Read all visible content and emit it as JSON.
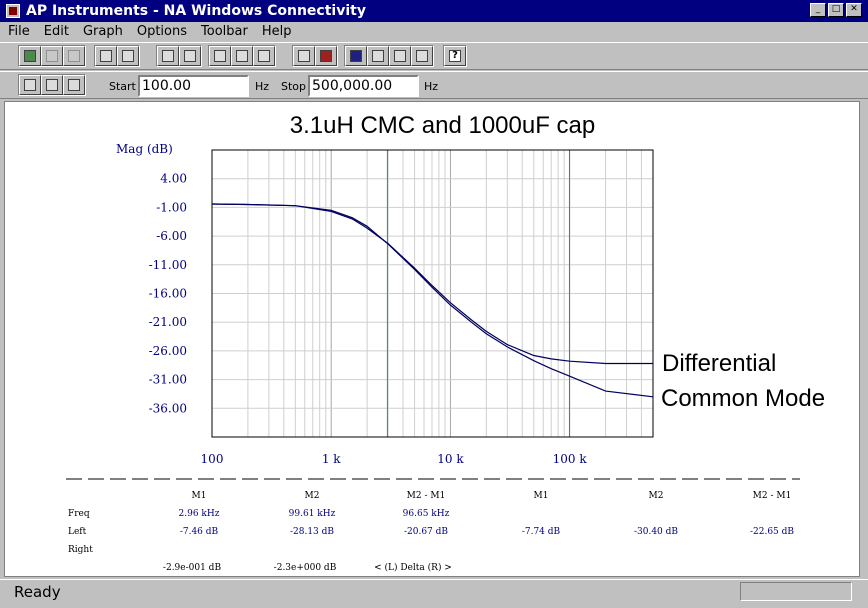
{
  "window": {
    "title": "AP Instruments - NA Windows Connectivity"
  },
  "menu": [
    "File",
    "Edit",
    "Graph",
    "Options",
    "Toolbar",
    "Help"
  ],
  "controls": {
    "start_label": "Start",
    "start_value": "100.00",
    "start_unit": "Hz",
    "stop_label": "Stop",
    "stop_value": "500,000.00",
    "stop_unit": "Hz"
  },
  "chart_data": {
    "type": "line",
    "title": "3.1uH CMC and 1000uF cap",
    "ylabel": "Mag (dB)",
    "xlabel": "",
    "xscale": "log",
    "xlim": [
      100,
      500000
    ],
    "ylim": [
      -41,
      9
    ],
    "yticks": [
      4,
      -1,
      -6,
      -11,
      -16,
      -21,
      -26,
      -31,
      -36
    ],
    "ytick_labels": [
      "4.00",
      "-1.00",
      "-6.00",
      "-11.00",
      "-16.00",
      "-21.00",
      "-26.00",
      "-31.00",
      "-36.00"
    ],
    "xticks": [
      100,
      1000,
      10000,
      100000
    ],
    "xtick_labels": [
      "100",
      "1 k",
      "10 k",
      "100 k"
    ],
    "markers": [
      2960,
      99610
    ],
    "grid": true,
    "series": [
      {
        "name": "Differential",
        "x": [
          100,
          200,
          500,
          1000,
          1500,
          2000,
          3000,
          5000,
          7000,
          10000,
          15000,
          20000,
          30000,
          50000,
          70000,
          100000,
          200000,
          500000
        ],
        "y": [
          -0.4,
          -0.5,
          -0.7,
          -1.7,
          -3.0,
          -4.6,
          -7.3,
          -11.6,
          -14.6,
          -17.6,
          -20.6,
          -22.6,
          -24.9,
          -26.8,
          -27.4,
          -27.8,
          -28.2,
          -28.2
        ]
      },
      {
        "name": "Common Mode",
        "x": [
          100,
          200,
          500,
          1000,
          1500,
          2000,
          3000,
          5000,
          7000,
          10000,
          15000,
          20000,
          30000,
          50000,
          70000,
          100000,
          200000,
          500000
        ],
        "y": [
          -0.4,
          -0.5,
          -0.7,
          -1.5,
          -2.8,
          -4.3,
          -7.4,
          -11.8,
          -14.9,
          -18.0,
          -21.0,
          -23.0,
          -25.3,
          -27.7,
          -29.1,
          -30.4,
          -33.0,
          -34.0
        ]
      }
    ],
    "table": {
      "headers": [
        "M1",
        "M2",
        "M2 - M1",
        "M1",
        "M2",
        "M2 - M1"
      ],
      "row_labels": [
        "Freq",
        "Left",
        "Right"
      ],
      "freq": [
        "2.96 kHz",
        "99.61 kHz",
        "96.65 kHz"
      ],
      "left": [
        "-7.46 dB",
        "-28.13 dB",
        "-20.67 dB",
        "-7.74 dB",
        "-30.40 dB",
        "-22.65 dB"
      ],
      "right": [
        "-2.9e-001 dB",
        "-2.3e+000 dB",
        "< (L) Delta (R) >"
      ]
    }
  },
  "status": {
    "text": "Ready"
  }
}
